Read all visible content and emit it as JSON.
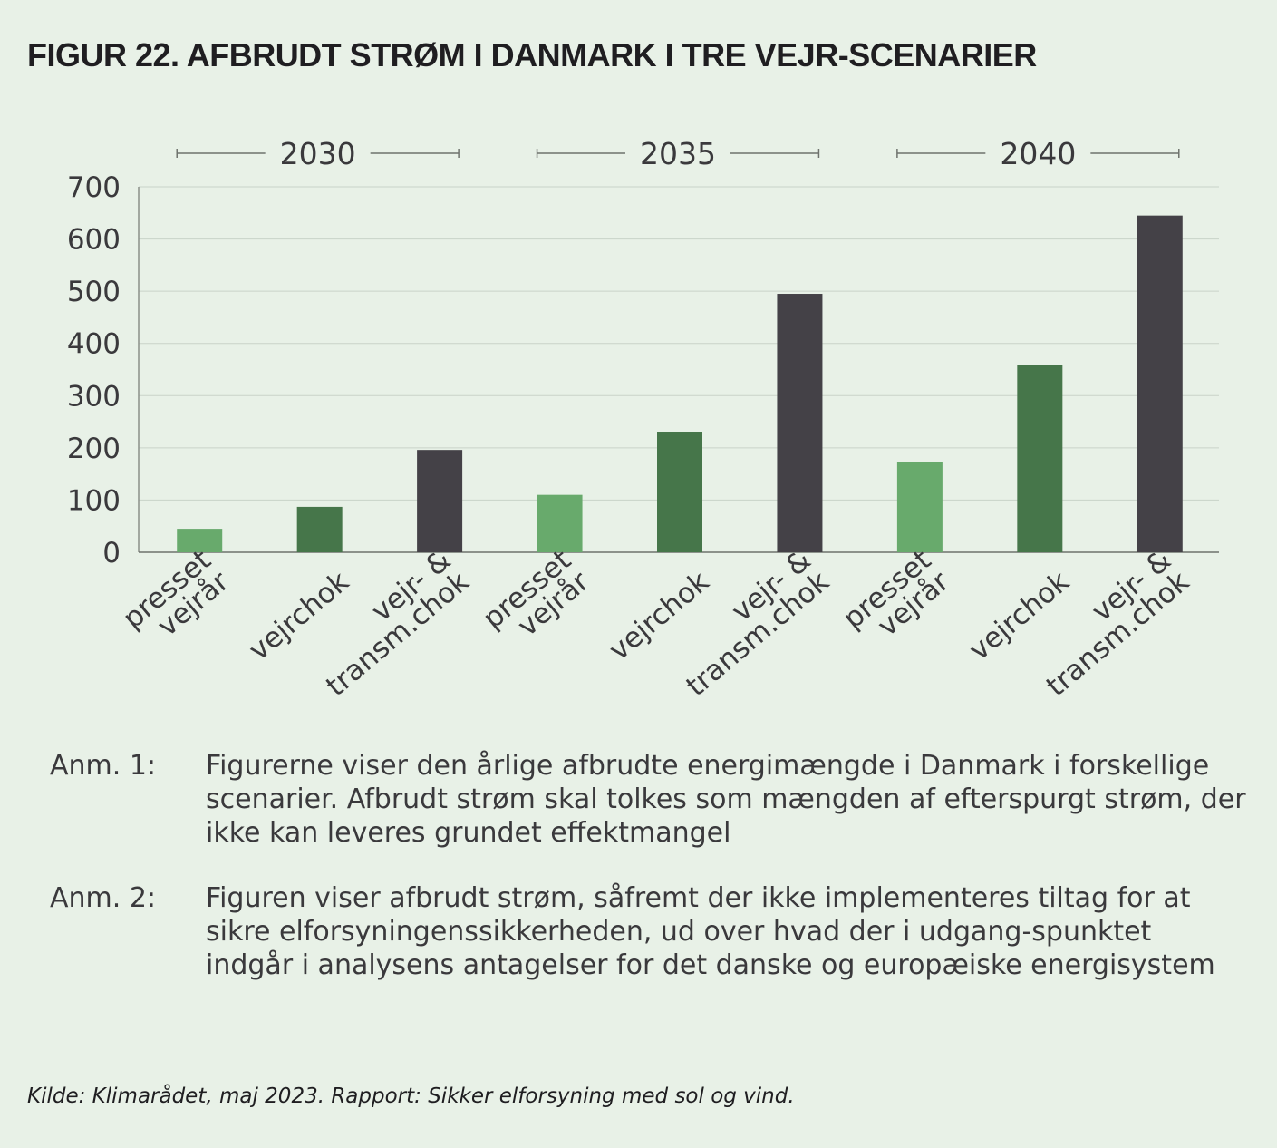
{
  "title": "FIGUR 22. AFBRUDT STRØM I DANMARK I TRE VEJR-SCENARIER",
  "chart_data": {
    "type": "bar",
    "title": "FIGUR 22. AFBRUDT STRØM I DANMARK I TRE VEJR-SCENARIER",
    "ylim": [
      0,
      700
    ],
    "yticks": [
      "0",
      "100",
      "200",
      "300",
      "400",
      "500",
      "600",
      "700"
    ],
    "grid": true,
    "groups": [
      "2030",
      "2035",
      "2040"
    ],
    "categories": [
      [
        "presset",
        "vejrår"
      ],
      [
        "vejrchok"
      ],
      [
        "vejr- &",
        "transm.chok"
      ],
      [
        "presset",
        "vejrår"
      ],
      [
        "vejrchok"
      ],
      [
        "vejr- &",
        "transm.chok"
      ],
      [
        "presset",
        "vejrår"
      ],
      [
        "vejrchok"
      ],
      [
        "vejr- &",
        "transm.chok"
      ]
    ],
    "values": [
      45,
      87,
      196,
      110,
      231,
      495,
      172,
      358,
      645
    ],
    "colors": [
      "#68aa6c",
      "#46764a",
      "#444147"
    ]
  },
  "notes": [
    {
      "label": "Anm. 1:",
      "text": "Figurerne viser den årlige afbrudte energimængde i Danmark i forskellige scenarier. Afbrudt strøm skal tolkes som mængden af efterspurgt strøm, der ikke kan leveres grundet effektmangel"
    },
    {
      "label": "Anm. 2:",
      "text": "Figuren viser afbrudt strøm, såfremt der ikke implementeres tiltag for at sikre elforsyningenssikkerheden, ud over hvad der i udgang-spunktet indgår i analysens antagelser for det danske og europæiske energisystem"
    }
  ],
  "source": "Kilde: Klimarådet, maj 2023. Rapport: Sikker elforsyning med sol og vind."
}
